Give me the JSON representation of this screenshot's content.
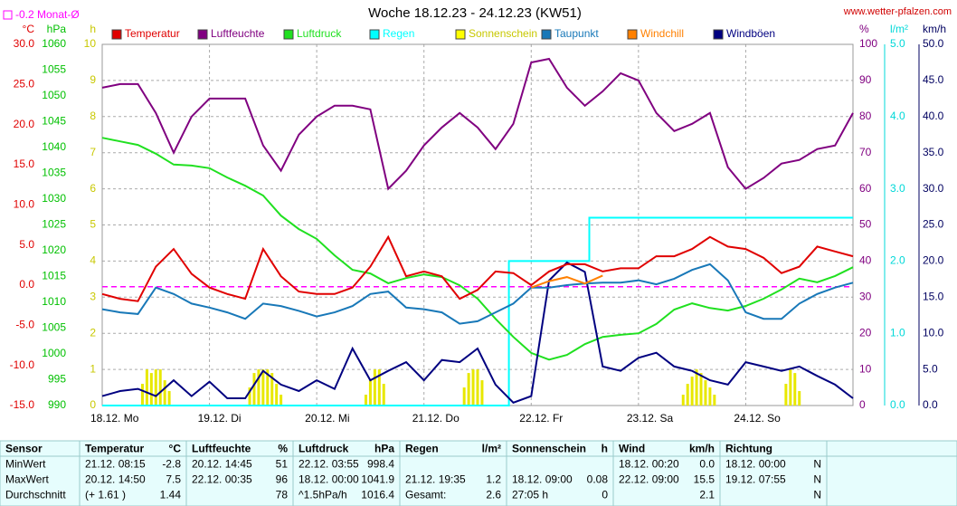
{
  "chart_data": {
    "type": "line",
    "title": "Woche 18.12.23 - 24.12.23 (KW51)",
    "source": "www.wetter-pfalzen.com",
    "xlim": [
      0,
      168
    ],
    "xticks": [
      {
        "value": 0,
        "label": "18.12. Mo"
      },
      {
        "value": 24,
        "label": "19.12. Di"
      },
      {
        "value": 48,
        "label": "20.12. Mi"
      },
      {
        "value": 72,
        "label": "21.12. Do"
      },
      {
        "value": 96,
        "label": "22.12. Fr"
      },
      {
        "value": 120,
        "label": "23.12. Sa"
      },
      {
        "value": 144,
        "label": "24.12. So"
      }
    ],
    "grid": true,
    "x": [
      0,
      4,
      8,
      12,
      16,
      20,
      24,
      28,
      32,
      36,
      40,
      44,
      48,
      52,
      56,
      60,
      64,
      68,
      72,
      76,
      80,
      84,
      88,
      92,
      96,
      100,
      104,
      108,
      112,
      116,
      120,
      124,
      128,
      132,
      136,
      140,
      144,
      148,
      152,
      156,
      160,
      164,
      168
    ],
    "axes": {
      "temp": {
        "unit": "°C",
        "color": "#e00000",
        "ylim": [
          -15,
          30
        ],
        "yticks": [
          {
            "value": -15,
            "label": "-15.0"
          },
          {
            "value": -10,
            "label": "-10.0"
          },
          {
            "value": -5,
            "label": "-5.0"
          },
          {
            "value": 0,
            "label": "0.0"
          },
          {
            "value": 5,
            "label": "5.0"
          },
          {
            "value": 10,
            "label": "10.0"
          },
          {
            "value": 15,
            "label": "15.0"
          },
          {
            "value": 20,
            "label": "20.0"
          },
          {
            "value": 25,
            "label": "25.0"
          },
          {
            "value": 30,
            "label": "30.0"
          }
        ]
      },
      "pressure": {
        "unit": "hPa",
        "color": "#00c000",
        "ylim": [
          990,
          1060
        ],
        "yticks": [
          990,
          995,
          1000,
          1005,
          1010,
          1015,
          1020,
          1025,
          1030,
          1035,
          1040,
          1045,
          1050,
          1055,
          1060
        ]
      },
      "sun": {
        "unit": "h",
        "color": "#c8c800",
        "ylim": [
          0,
          10
        ],
        "yticks": [
          0,
          1,
          2,
          3,
          4,
          5,
          6,
          7,
          8,
          9,
          10
        ]
      },
      "humidity": {
        "unit": "%",
        "color": "#800080",
        "ylim": [
          0,
          100
        ],
        "yticks": [
          0,
          10,
          20,
          30,
          40,
          50,
          60,
          70,
          80,
          90,
          100
        ]
      },
      "rain": {
        "unit": "l/m²",
        "color": "#00d8d8",
        "ylim": [
          0,
          5
        ],
        "yticks": [
          {
            "value": 0,
            "label": "0.0"
          },
          {
            "value": 1,
            "label": "1.0"
          },
          {
            "value": 2,
            "label": "2.0"
          },
          {
            "value": 3,
            "label": "3.0"
          },
          {
            "value": 4,
            "label": "4.0"
          },
          {
            "value": 5,
            "label": "5.0"
          }
        ]
      },
      "wind": {
        "unit": "km/h",
        "color": "#000060",
        "ylim": [
          0,
          50
        ],
        "yticks": [
          {
            "value": 0,
            "label": "0.0"
          },
          {
            "value": 5,
            "label": "5.0"
          },
          {
            "value": 10,
            "label": "10.0"
          },
          {
            "value": 15,
            "label": "15.0"
          },
          {
            "value": 20,
            "label": "20.0"
          },
          {
            "value": 25,
            "label": "25.0"
          },
          {
            "value": 30,
            "label": "30.0"
          },
          {
            "value": 35,
            "label": "35.0"
          },
          {
            "value": 40,
            "label": "40.0"
          },
          {
            "value": 45,
            "label": "45.0"
          },
          {
            "value": 50,
            "label": "50.0"
          }
        ]
      }
    },
    "monthly_mean": {
      "value": -0.2,
      "label": "-0.2 Monat-Ø",
      "color": "#ff00ff"
    },
    "series": [
      {
        "name": "Temperatur",
        "color": "#e00000",
        "axis": "temp",
        "values": [
          -1.1,
          -1.7,
          -2.0,
          2.3,
          4.5,
          1.4,
          -0.3,
          -1.1,
          -1.7,
          4.5,
          1.1,
          -0.8,
          -1.1,
          -1.1,
          -0.3,
          2.3,
          6.0,
          1.1,
          1.7,
          1.1,
          -1.7,
          -0.6,
          1.7,
          1.5,
          0,
          1.7,
          2.6,
          2.6,
          1.7,
          2.1,
          2.1,
          3.6,
          3.6,
          4.5,
          6.0,
          4.8,
          4.5,
          3.4,
          1.5,
          2.3,
          4.8,
          4.2,
          3.6
        ]
      },
      {
        "name": "Luftfeuchte",
        "color": "#800080",
        "axis": "humidity",
        "values": [
          88,
          89,
          89,
          81,
          70,
          80,
          85,
          85,
          85,
          72,
          65,
          75,
          80,
          83,
          83,
          82,
          60,
          65,
          72,
          77,
          81,
          77,
          71,
          78,
          95,
          96,
          88,
          83,
          87,
          92,
          90,
          81,
          76,
          78,
          81,
          66,
          60,
          63,
          67,
          68,
          71,
          72,
          81
        ]
      },
      {
        "name": "Luftdruck",
        "color": "#20e020",
        "axis": "pressure",
        "values": [
          1041.9,
          1041.2,
          1040.5,
          1038.8,
          1036.7,
          1036.5,
          1036.0,
          1034.2,
          1032.6,
          1030.7,
          1026.8,
          1024.2,
          1022.3,
          1019.1,
          1016.3,
          1015.6,
          1013.7,
          1014.7,
          1015.4,
          1014.9,
          1013.3,
          1010.7,
          1006.8,
          1003.3,
          1000.2,
          998.9,
          999.8,
          1001.9,
          1003.3,
          1003.7,
          1004.0,
          1005.8,
          1008.6,
          1009.8,
          1008.9,
          1008.4,
          1009.3,
          1010.7,
          1012.5,
          1014.6,
          1013.9,
          1015.1,
          1016.8
        ]
      },
      {
        "name": "Regen",
        "color": "#00ffff",
        "axis": "rain",
        "x": [
          0,
          91,
          91,
          109,
          109,
          168
        ],
        "values": [
          0,
          0,
          2.0,
          2.0,
          2.6,
          2.6
        ]
      },
      {
        "name": "Sonnenschein",
        "color": "#ffff00",
        "axis": "sun",
        "type": "bar",
        "x": [
          9,
          10,
          11,
          12,
          13,
          14,
          15,
          33,
          34,
          35,
          36,
          37,
          38,
          39,
          40,
          59,
          60,
          61,
          62,
          63,
          81,
          82,
          83,
          84,
          85,
          130,
          131,
          132,
          133,
          134,
          135,
          136,
          137,
          153,
          154,
          155,
          156
        ],
        "values": [
          0.6,
          1.0,
          0.9,
          1.0,
          1.0,
          0.7,
          0.4,
          0.5,
          0.9,
          1.0,
          1.0,
          1.0,
          0.9,
          0.6,
          0.3,
          0.3,
          0.7,
          1.0,
          1.0,
          0.6,
          0.5,
          0.9,
          1.0,
          1.0,
          0.7,
          0.3,
          0.6,
          0.8,
          1.0,
          0.9,
          0.7,
          0.5,
          0.3,
          0.6,
          1.0,
          0.9,
          0.4
        ]
      },
      {
        "name": "Taupunkt",
        "color": "#1878b8",
        "axis": "temp",
        "values": [
          -3.0,
          -3.4,
          -3.6,
          -0.3,
          -1.1,
          -2.3,
          -2.8,
          -3.4,
          -4.2,
          -2.3,
          -2.6,
          -3.2,
          -3.9,
          -3.4,
          -2.6,
          -1.1,
          -0.8,
          -2.8,
          -3.0,
          -3.4,
          -4.8,
          -4.5,
          -3.4,
          -2.3,
          -0.3,
          -0.3,
          0,
          0.2,
          0.3,
          0.3,
          0.6,
          0.1,
          0.8,
          1.9,
          2.6,
          0.6,
          -3.4,
          -4.2,
          -4.2,
          -2.3,
          -1.1,
          -0.3,
          0.3
        ]
      },
      {
        "name": "Windchill",
        "color": "#ff8000",
        "axis": "temp",
        "values": [
          null,
          null,
          null,
          null,
          null,
          null,
          null,
          null,
          null,
          null,
          null,
          null,
          null,
          null,
          null,
          null,
          null,
          null,
          null,
          null,
          null,
          null,
          null,
          null,
          -0.3,
          0.5,
          1.0,
          0.2,
          1.2,
          null,
          null,
          null,
          null,
          null,
          null,
          null,
          null,
          null,
          null,
          null,
          null,
          null,
          null
        ]
      },
      {
        "name": "Windböen",
        "color": "#000080",
        "axis": "wind",
        "values": [
          1.3,
          2,
          2.3,
          1.3,
          3.5,
          1.3,
          3.3,
          1,
          1,
          4.8,
          2.9,
          2,
          3.5,
          2.3,
          7.9,
          3.5,
          4.8,
          6,
          3.5,
          6.3,
          6,
          7.9,
          2.9,
          0.4,
          1.3,
          17.3,
          19.8,
          18.5,
          5.4,
          4.8,
          6.6,
          7.3,
          5.4,
          4.8,
          3.5,
          2.9,
          6,
          5.4,
          4.8,
          5.4,
          4.1,
          2.9,
          1
        ]
      }
    ]
  },
  "table": {
    "header": [
      "Sensor",
      "Temperatur",
      "°C",
      "Luftfeuchte",
      "%",
      "Luftdruck",
      "hPa",
      "Regen",
      "l/m²",
      "Sonnenschein",
      "h",
      "Wind",
      "km/h",
      "Richtung",
      null
    ],
    "rows": [
      [
        "MinWert",
        "21.12.  08:15",
        "-2.8",
        "20.12.  14:45",
        "51",
        "22.12.  03:55",
        "998.4",
        null,
        null,
        null,
        null,
        "18.12.  00:20",
        "0.0",
        "18.12.  00:00",
        "N"
      ],
      [
        "MaxWert",
        "20.12.  14:50",
        "7.5",
        "22.12.  00:35",
        "96",
        "18.12.  00:00",
        "1041.9",
        "21.12.  19:35",
        "1.2",
        "18.12.  09:00",
        "0.08",
        "22.12.  09:00",
        "15.5",
        "19.12.  07:55",
        "N"
      ],
      [
        "Durchschnitt",
        "(+ 1.61 )",
        "1.44",
        null,
        "78",
        "^1.5hPa/h",
        "1016.4",
        "Gesamt:",
        "2.6",
        "27:05 h",
        "0",
        null,
        "2.1",
        null,
        "N"
      ]
    ]
  }
}
